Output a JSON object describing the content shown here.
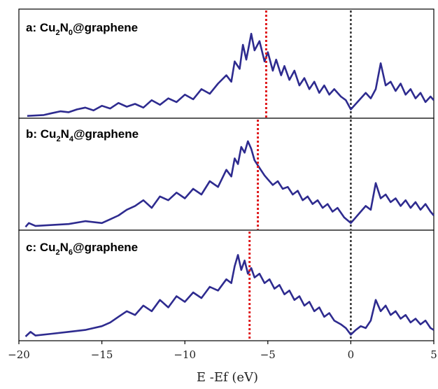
{
  "chart_data": {
    "type": "line",
    "xlabel": "E -Ef (eV)",
    "xlim": [
      -20,
      5
    ],
    "x_ticks": [
      -20,
      -15,
      -10,
      -5,
      0,
      5
    ],
    "tick_labels": [
      "−20",
      "−15",
      "−10",
      "−5",
      "0",
      "5"
    ],
    "fermi_level": 0,
    "grid": false,
    "line_color": "#2e2b8f",
    "dband_center_color": "#e0191c",
    "fermi_line_color": "#333333",
    "panels": [
      {
        "label_prefix": "a: Cu",
        "label_sub1": "2",
        "label_mid": "N",
        "label_sub2": "0",
        "label_suffix": "@graphene",
        "d_band_center": -5.1,
        "points": [
          [
            -19.5,
            0.01
          ],
          [
            -18.5,
            0.02
          ],
          [
            -18,
            0.04
          ],
          [
            -17.5,
            0.06
          ],
          [
            -17,
            0.05
          ],
          [
            -16.5,
            0.08
          ],
          [
            -16,
            0.1
          ],
          [
            -15.5,
            0.07
          ],
          [
            -15,
            0.12
          ],
          [
            -14.5,
            0.09
          ],
          [
            -14,
            0.15
          ],
          [
            -13.5,
            0.11
          ],
          [
            -13,
            0.14
          ],
          [
            -12.5,
            0.1
          ],
          [
            -12,
            0.18
          ],
          [
            -11.5,
            0.13
          ],
          [
            -11,
            0.2
          ],
          [
            -10.5,
            0.16
          ],
          [
            -10,
            0.24
          ],
          [
            -9.5,
            0.19
          ],
          [
            -9,
            0.3
          ],
          [
            -8.5,
            0.25
          ],
          [
            -8,
            0.36
          ],
          [
            -7.5,
            0.45
          ],
          [
            -7.2,
            0.38
          ],
          [
            -7,
            0.6
          ],
          [
            -6.7,
            0.52
          ],
          [
            -6.5,
            0.78
          ],
          [
            -6.3,
            0.62
          ],
          [
            -6,
            0.9
          ],
          [
            -5.8,
            0.72
          ],
          [
            -5.5,
            0.82
          ],
          [
            -5.2,
            0.6
          ],
          [
            -5,
            0.7
          ],
          [
            -4.7,
            0.5
          ],
          [
            -4.5,
            0.62
          ],
          [
            -4.2,
            0.45
          ],
          [
            -4,
            0.55
          ],
          [
            -3.7,
            0.4
          ],
          [
            -3.4,
            0.5
          ],
          [
            -3.1,
            0.34
          ],
          [
            -2.8,
            0.42
          ],
          [
            -2.5,
            0.3
          ],
          [
            -2.2,
            0.38
          ],
          [
            -1.9,
            0.26
          ],
          [
            -1.6,
            0.34
          ],
          [
            -1.3,
            0.24
          ],
          [
            -1,
            0.3
          ],
          [
            -0.6,
            0.22
          ],
          [
            -0.3,
            0.18
          ],
          [
            0,
            0.08
          ],
          [
            0.3,
            0.14
          ],
          [
            0.6,
            0.2
          ],
          [
            0.9,
            0.26
          ],
          [
            1.2,
            0.2
          ],
          [
            1.5,
            0.3
          ],
          [
            1.8,
            0.58
          ],
          [
            2.1,
            0.34
          ],
          [
            2.4,
            0.38
          ],
          [
            2.7,
            0.28
          ],
          [
            3,
            0.36
          ],
          [
            3.3,
            0.24
          ],
          [
            3.6,
            0.3
          ],
          [
            3.9,
            0.2
          ],
          [
            4.2,
            0.26
          ],
          [
            4.5,
            0.16
          ],
          [
            4.8,
            0.22
          ],
          [
            5,
            0.18
          ]
        ]
      },
      {
        "label_prefix": "b: Cu",
        "label_sub1": "2",
        "label_mid": "N",
        "label_sub2": "4",
        "label_suffix": "@graphene",
        "d_band_center": -5.6,
        "points": [
          [
            -19.6,
            0.02
          ],
          [
            -19.4,
            0.06
          ],
          [
            -19,
            0.03
          ],
          [
            -18,
            0.04
          ],
          [
            -17,
            0.05
          ],
          [
            -16,
            0.08
          ],
          [
            -15,
            0.06
          ],
          [
            -14.5,
            0.1
          ],
          [
            -14,
            0.14
          ],
          [
            -13.5,
            0.2
          ],
          [
            -13,
            0.24
          ],
          [
            -12.5,
            0.3
          ],
          [
            -12,
            0.22
          ],
          [
            -11.5,
            0.34
          ],
          [
            -11,
            0.3
          ],
          [
            -10.5,
            0.38
          ],
          [
            -10,
            0.32
          ],
          [
            -9.5,
            0.42
          ],
          [
            -9,
            0.36
          ],
          [
            -8.5,
            0.5
          ],
          [
            -8,
            0.44
          ],
          [
            -7.5,
            0.62
          ],
          [
            -7.2,
            0.55
          ],
          [
            -7,
            0.74
          ],
          [
            -6.8,
            0.68
          ],
          [
            -6.6,
            0.86
          ],
          [
            -6.4,
            0.8
          ],
          [
            -6.2,
            0.92
          ],
          [
            -6,
            0.84
          ],
          [
            -5.8,
            0.72
          ],
          [
            -5.5,
            0.64
          ],
          [
            -5.2,
            0.56
          ],
          [
            -5,
            0.52
          ],
          [
            -4.7,
            0.46
          ],
          [
            -4.4,
            0.5
          ],
          [
            -4.1,
            0.42
          ],
          [
            -3.8,
            0.44
          ],
          [
            -3.5,
            0.36
          ],
          [
            -3.2,
            0.4
          ],
          [
            -2.9,
            0.3
          ],
          [
            -2.6,
            0.34
          ],
          [
            -2.3,
            0.26
          ],
          [
            -2,
            0.3
          ],
          [
            -1.7,
            0.22
          ],
          [
            -1.4,
            0.26
          ],
          [
            -1.1,
            0.18
          ],
          [
            -0.8,
            0.22
          ],
          [
            -0.4,
            0.12
          ],
          [
            0,
            0.06
          ],
          [
            0.3,
            0.12
          ],
          [
            0.6,
            0.18
          ],
          [
            0.9,
            0.24
          ],
          [
            1.2,
            0.2
          ],
          [
            1.5,
            0.48
          ],
          [
            1.8,
            0.32
          ],
          [
            2.1,
            0.36
          ],
          [
            2.4,
            0.28
          ],
          [
            2.7,
            0.32
          ],
          [
            3,
            0.24
          ],
          [
            3.3,
            0.3
          ],
          [
            3.6,
            0.22
          ],
          [
            3.9,
            0.28
          ],
          [
            4.2,
            0.2
          ],
          [
            4.5,
            0.26
          ],
          [
            4.8,
            0.18
          ],
          [
            5,
            0.14
          ]
        ]
      },
      {
        "label_prefix": "c: Cu",
        "label_sub1": "2",
        "label_mid": "N",
        "label_sub2": "6",
        "label_suffix": "@graphene",
        "d_band_center": -6.1,
        "points": [
          [
            -19.6,
            0.03
          ],
          [
            -19.3,
            0.08
          ],
          [
            -19,
            0.04
          ],
          [
            -18,
            0.06
          ],
          [
            -17,
            0.08
          ],
          [
            -16,
            0.1
          ],
          [
            -15,
            0.14
          ],
          [
            -14.5,
            0.18
          ],
          [
            -14,
            0.24
          ],
          [
            -13.5,
            0.3
          ],
          [
            -13,
            0.26
          ],
          [
            -12.5,
            0.36
          ],
          [
            -12,
            0.3
          ],
          [
            -11.5,
            0.42
          ],
          [
            -11,
            0.34
          ],
          [
            -10.5,
            0.46
          ],
          [
            -10,
            0.4
          ],
          [
            -9.5,
            0.5
          ],
          [
            -9,
            0.44
          ],
          [
            -8.5,
            0.56
          ],
          [
            -8,
            0.52
          ],
          [
            -7.5,
            0.64
          ],
          [
            -7.2,
            0.6
          ],
          [
            -7,
            0.78
          ],
          [
            -6.8,
            0.9
          ],
          [
            -6.6,
            0.74
          ],
          [
            -6.4,
            0.84
          ],
          [
            -6.2,
            0.7
          ],
          [
            -6,
            0.76
          ],
          [
            -5.8,
            0.66
          ],
          [
            -5.5,
            0.7
          ],
          [
            -5.2,
            0.6
          ],
          [
            -4.9,
            0.64
          ],
          [
            -4.6,
            0.54
          ],
          [
            -4.3,
            0.58
          ],
          [
            -4,
            0.48
          ],
          [
            -3.7,
            0.52
          ],
          [
            -3.4,
            0.42
          ],
          [
            -3.1,
            0.46
          ],
          [
            -2.8,
            0.36
          ],
          [
            -2.5,
            0.4
          ],
          [
            -2.2,
            0.3
          ],
          [
            -1.9,
            0.34
          ],
          [
            -1.6,
            0.24
          ],
          [
            -1.3,
            0.28
          ],
          [
            -1,
            0.2
          ],
          [
            -0.6,
            0.16
          ],
          [
            -0.3,
            0.12
          ],
          [
            0,
            0.05
          ],
          [
            0.3,
            0.1
          ],
          [
            0.6,
            0.14
          ],
          [
            0.9,
            0.12
          ],
          [
            1.2,
            0.2
          ],
          [
            1.5,
            0.42
          ],
          [
            1.8,
            0.3
          ],
          [
            2.1,
            0.36
          ],
          [
            2.4,
            0.26
          ],
          [
            2.7,
            0.3
          ],
          [
            3,
            0.22
          ],
          [
            3.3,
            0.26
          ],
          [
            3.6,
            0.18
          ],
          [
            3.9,
            0.22
          ],
          [
            4.2,
            0.16
          ],
          [
            4.5,
            0.2
          ],
          [
            4.8,
            0.12
          ],
          [
            5,
            0.1
          ]
        ]
      }
    ]
  }
}
